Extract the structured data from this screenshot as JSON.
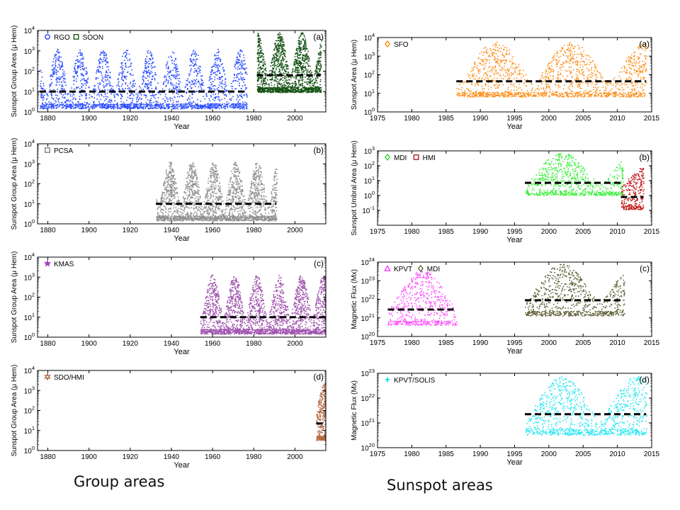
{
  "captions": {
    "left": "Group areas",
    "right": "Sunspot areas"
  },
  "chart_data": [
    {
      "id": "L1",
      "type": "scatter",
      "panel_label": "(a)",
      "ylabel": "Sunspot Group Area (μ Hem)",
      "xlabel": "Year",
      "xlim": [
        1875,
        2015
      ],
      "xticks": [
        1880,
        1900,
        1920,
        1940,
        1960,
        1980,
        2000
      ],
      "ylog": true,
      "ylim": [
        0,
        4
      ],
      "yticks": [
        0,
        1,
        2,
        3,
        4
      ],
      "legend": [
        {
          "label": "RGO",
          "color": "#1f3fff",
          "marker": "circle"
        },
        {
          "label": "SOON",
          "color": "#0b4a0b",
          "marker": "square"
        }
      ],
      "series": [
        {
          "name": "RGO",
          "color": "#2244ff",
          "x": [
            1876,
            1976.5
          ],
          "median": 1.0,
          "cycle_start": 1878.9,
          "cycle_period": 11.1,
          "cycle_count": 9
        },
        {
          "name": "SOON",
          "color": "#0b4a0b",
          "x": [
            1981.5,
            2012.5
          ],
          "median": 1.8,
          "cycle_start": 1986.7,
          "cycle_period": 11.0,
          "cycle_count": 3
        }
      ]
    },
    {
      "id": "L2",
      "type": "scatter",
      "panel_label": "(b)",
      "ylabel": "Sunspot Group Area (μ Hem)",
      "xlabel": "Year",
      "xlim": [
        1875,
        2015
      ],
      "xticks": [
        1880,
        1900,
        1920,
        1940,
        1960,
        1980,
        2000
      ],
      "ylog": true,
      "ylim": [
        0,
        4
      ],
      "yticks": [
        0,
        1,
        2,
        3,
        4
      ],
      "legend": [
        {
          "label": "PCSA",
          "color": "#777777",
          "marker": "square"
        }
      ],
      "series": [
        {
          "name": "PCSA",
          "color": "#8a8a8a",
          "x": [
            1932.5,
            1991
          ],
          "median": 1.0,
          "cycle_start": 1933.8,
          "cycle_period": 10.6,
          "cycle_count": 6
        }
      ]
    },
    {
      "id": "L3",
      "type": "scatter",
      "panel_label": "(c)",
      "ylabel": "Sunspot Group Area (μ Hem)",
      "xlabel": "Year",
      "xlim": [
        1875,
        2015
      ],
      "xticks": [
        1880,
        1900,
        1920,
        1940,
        1960,
        1980,
        2000
      ],
      "ylog": true,
      "ylim": [
        0,
        4
      ],
      "yticks": [
        0,
        1,
        2,
        3,
        4
      ],
      "legend": [
        {
          "label": "KMAS",
          "color": "#a040c0",
          "marker": "star"
        }
      ],
      "series": [
        {
          "name": "KMAS",
          "color": "#9a4aaa",
          "x": [
            1954,
            2015
          ],
          "median": 1.0,
          "cycle_start": 1954.3,
          "cycle_period": 10.8,
          "cycle_count": 6
        }
      ]
    },
    {
      "id": "L4",
      "type": "scatter",
      "panel_label": "(d)",
      "ylabel": "Sunspot Group Area (μ Hem)",
      "xlabel": "Year",
      "xlim": [
        1875,
        2015
      ],
      "xticks": [
        1880,
        1900,
        1920,
        1940,
        1960,
        1980,
        2000
      ],
      "ylog": true,
      "ylim": [
        0,
        4
      ],
      "yticks": [
        0,
        1,
        2,
        3,
        4
      ],
      "legend": [
        {
          "label": "SDO/HMI",
          "color": "#a0522d",
          "marker": "hexagram"
        }
      ],
      "series": [
        {
          "name": "SDO/HMI",
          "color": "#b0623a",
          "x": [
            2010.3,
            2015
          ],
          "median": 1.35,
          "cycle_start": 2008.9,
          "cycle_period": 11.0,
          "cycle_count": 1
        }
      ]
    },
    {
      "id": "R1",
      "type": "scatter",
      "panel_label": "(a)",
      "ylabel": "Sunspot Area (μ Hem)",
      "xlabel": "Year",
      "xlim": [
        1975,
        2015
      ],
      "xticks": [
        1975,
        1980,
        1985,
        1990,
        1995,
        2000,
        2005,
        2010,
        2015
      ],
      "ylog": true,
      "ylim": [
        0,
        4
      ],
      "yticks": [
        0,
        1,
        2,
        3,
        4
      ],
      "legend": [
        {
          "label": "SFO",
          "color": "#ff8000",
          "marker": "diamond"
        }
      ],
      "series": [
        {
          "name": "SFO",
          "color": "#ff8a10",
          "x": [
            1986.5,
            2014.2
          ],
          "median": 1.65,
          "cycle_start": 1986.7,
          "cycle_period": 11.0,
          "cycle_count": 3
        }
      ]
    },
    {
      "id": "R2",
      "type": "scatter",
      "panel_label": "(b)",
      "ylabel": "Sunspot Umbral Area (μ Hem)",
      "xlabel": "Year",
      "xlim": [
        1975,
        2015
      ],
      "xticks": [
        1975,
        1980,
        1985,
        1990,
        1995,
        2000,
        2005,
        2010,
        2015
      ],
      "ylog": true,
      "ylim": [
        -2,
        3
      ],
      "yticks": [
        -1,
        0,
        1,
        2,
        3
      ],
      "legend": [
        {
          "label": "MDI",
          "color": "#22cc22",
          "marker": "diamond"
        },
        {
          "label": "HMI",
          "color": "#aa1111",
          "marker": "square"
        }
      ],
      "series": [
        {
          "name": "MDI",
          "color": "#33ee33",
          "x": [
            1996.5,
            2010.8
          ],
          "median": 0.85,
          "cycle_start": 1996.4,
          "cycle_period": 11.0,
          "cycle_count": 2
        },
        {
          "name": "HMI",
          "color": "#c01010",
          "x": [
            2010.5,
            2013.8
          ],
          "median": -0.1,
          "cycle_start": 2008.9,
          "cycle_period": 11.0,
          "cycle_count": 1
        }
      ]
    },
    {
      "id": "R3",
      "type": "scatter",
      "panel_label": "(c)",
      "ylabel": "Magnetic Flux (Mx)",
      "xlabel": "Year",
      "xlim": [
        1975,
        2015
      ],
      "xticks": [
        1975,
        1980,
        1985,
        1990,
        1995,
        2000,
        2005,
        2010,
        2015
      ],
      "ylog": true,
      "ylim": [
        20,
        24
      ],
      "yticks": [
        20,
        21,
        22,
        23,
        24
      ],
      "legend": [
        {
          "label": "KPVT",
          "color": "#ff33ff",
          "marker": "triangle"
        },
        {
          "label": "MDI",
          "color": "#5a5a2a",
          "marker": "diamond"
        }
      ],
      "series": [
        {
          "name": "KPVT",
          "color": "#ff44ff",
          "x": [
            1976.5,
            1986.5
          ],
          "median": 21.45,
          "cycle_start": 1976.3,
          "cycle_period": 10.5,
          "cycle_count": 1
        },
        {
          "name": "MDI",
          "color": "#5a5a30",
          "x": [
            1996.5,
            2011
          ],
          "median": 21.95,
          "cycle_start": 1996.4,
          "cycle_period": 11.0,
          "cycle_count": 2
        }
      ]
    },
    {
      "id": "R4",
      "type": "scatter",
      "panel_label": "(d)",
      "ylabel": "Magnetic Flux (Mx)",
      "xlabel": "Year",
      "xlim": [
        1975,
        2015
      ],
      "xticks": [
        1975,
        1980,
        1985,
        1990,
        1995,
        2000,
        2005,
        2010,
        2015
      ],
      "ylog": true,
      "ylim": [
        20,
        23
      ],
      "yticks": [
        20,
        21,
        22,
        23
      ],
      "legend": [
        {
          "label": "KPVT/SOLIS",
          "color": "#00dddd",
          "marker": "plus"
        }
      ],
      "series": [
        {
          "name": "KPVT/SOLIS",
          "color": "#22e6f0",
          "x": [
            1996.5,
            2014.2
          ],
          "median": 21.35,
          "cycle_start": 1996.4,
          "cycle_period": 11.0,
          "cycle_count": 2
        }
      ]
    }
  ]
}
